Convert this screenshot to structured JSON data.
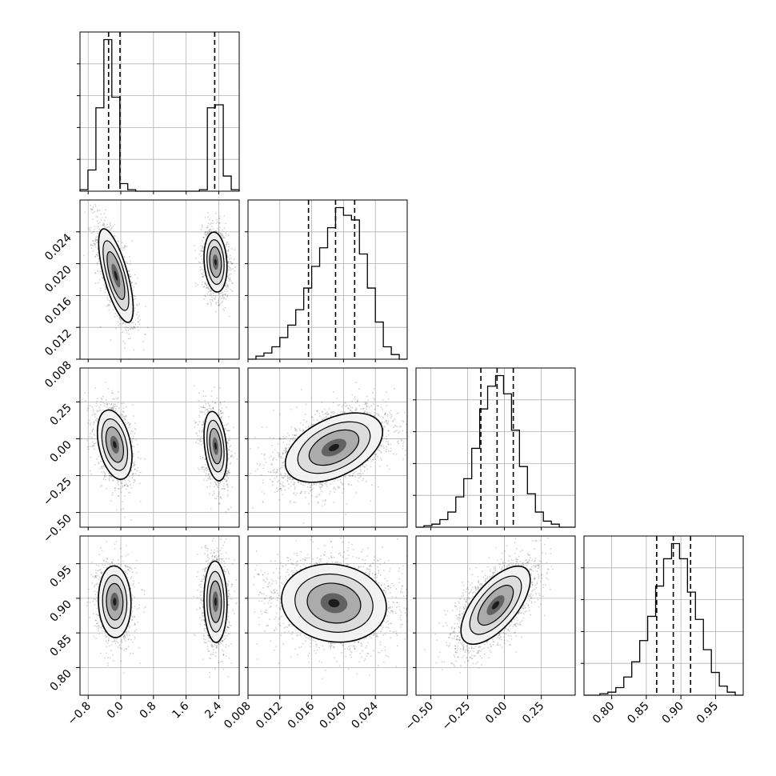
{
  "chart_data": {
    "type": "corner",
    "grid": true,
    "n_params": 4,
    "params": [
      {
        "range": [
          -1.0,
          2.9
        ],
        "ticks": [
          -0.8,
          0.0,
          0.8,
          1.6,
          2.4
        ],
        "tick_labels": [
          "−0.8",
          "0.0",
          "0.8",
          "1.6",
          "2.4"
        ],
        "modes": [
          {
            "center": -0.1,
            "sigma": 0.18,
            "weight": 0.6
          },
          {
            "center": 2.3,
            "sigma": 0.13,
            "weight": 0.4
          }
        ],
        "quantiles": [
          -0.3,
          -0.02,
          2.3
        ]
      },
      {
        "range": [
          0.008,
          0.028
        ],
        "ticks": [
          0.008,
          0.012,
          0.016,
          0.02,
          0.024
        ],
        "tick_labels": [
          "0.008",
          "0.012",
          "0.016",
          "0.020",
          "0.024"
        ],
        "center": 0.0188,
        "sigma": 0.0025,
        "quantiles": [
          0.0156,
          0.019,
          0.0214
        ]
      },
      {
        "range": [
          -0.6,
          0.48
        ],
        "ticks": [
          -0.5,
          -0.25,
          0.0,
          0.25
        ],
        "tick_labels": [
          "−0.50",
          "−0.25",
          "0.00",
          "0.25"
        ],
        "center": -0.05,
        "sigma": 0.1,
        "quantiles": [
          -0.16,
          -0.05,
          0.06
        ]
      },
      {
        "range": [
          0.76,
          0.99
        ],
        "ticks": [
          0.8,
          0.85,
          0.9,
          0.95
        ],
        "tick_labels": [
          "0.80",
          "0.85",
          "0.90",
          "0.95"
        ],
        "center": 0.89,
        "sigma": 0.025,
        "quantiles": [
          0.865,
          0.889,
          0.914
        ]
      }
    ],
    "histograms": [
      {
        "param": 0,
        "bins": [
          -1.0,
          -0.805,
          -0.61,
          -0.415,
          -0.22,
          -0.025,
          0.17,
          0.365,
          0.56,
          0.755,
          0.95,
          1.145,
          1.34,
          1.535,
          1.73,
          1.925,
          2.12,
          2.315,
          2.51,
          2.705,
          2.9
        ],
        "counts": [
          0.01,
          0.14,
          0.55,
          1.0,
          0.62,
          0.05,
          0.01,
          0.0,
          0.0,
          0.0,
          0.0,
          0.0,
          0.0,
          0.0,
          0.0,
          0.01,
          0.55,
          0.57,
          0.1,
          0.01
        ]
      },
      {
        "param": 1,
        "bins": [
          0.008,
          0.009,
          0.01,
          0.011,
          0.012,
          0.013,
          0.014,
          0.015,
          0.016,
          0.017,
          0.018,
          0.019,
          0.02,
          0.021,
          0.022,
          0.023,
          0.024,
          0.025,
          0.026,
          0.027,
          0.028
        ],
        "counts": [
          0.0,
          0.02,
          0.04,
          0.08,
          0.14,
          0.22,
          0.32,
          0.46,
          0.6,
          0.72,
          0.85,
          0.98,
          0.93,
          0.9,
          0.68,
          0.46,
          0.24,
          0.08,
          0.03,
          0.0
        ]
      },
      {
        "param": 2,
        "bins": [
          -0.6,
          -0.546,
          -0.492,
          -0.438,
          -0.384,
          -0.33,
          -0.276,
          -0.222,
          -0.168,
          -0.114,
          -0.06,
          -0.006,
          0.048,
          0.102,
          0.156,
          0.21,
          0.264,
          0.318,
          0.372,
          0.426,
          0.48
        ],
        "counts": [
          0.0,
          0.01,
          0.02,
          0.05,
          0.1,
          0.2,
          0.32,
          0.52,
          0.78,
          0.93,
          1.0,
          0.88,
          0.64,
          0.4,
          0.22,
          0.1,
          0.04,
          0.02,
          0.0,
          0.0
        ]
      },
      {
        "param": 3,
        "bins": [
          0.76,
          0.7715,
          0.783,
          0.7945,
          0.806,
          0.8175,
          0.829,
          0.8405,
          0.852,
          0.8635,
          0.875,
          0.8865,
          0.898,
          0.9095,
          0.921,
          0.9325,
          0.944,
          0.9555,
          0.967,
          0.9785,
          0.99
        ],
        "counts": [
          0.0,
          0.0,
          0.01,
          0.02,
          0.05,
          0.12,
          0.22,
          0.36,
          0.52,
          0.72,
          0.9,
          1.0,
          0.9,
          0.68,
          0.5,
          0.3,
          0.15,
          0.06,
          0.02,
          0.0
        ]
      }
    ],
    "pairs": [
      {
        "x": 0,
        "y": 1,
        "modes": [
          {
            "cx": -0.12,
            "cy": 0.0185,
            "sx": 0.18,
            "sy": 0.0025,
            "rho": -0.7
          },
          {
            "cx": 2.32,
            "cy": 0.0202,
            "sx": 0.12,
            "sy": 0.0016,
            "rho": -0.15
          }
        ]
      },
      {
        "x": 0,
        "y": 2,
        "modes": [
          {
            "cx": -0.15,
            "cy": -0.04,
            "sx": 0.18,
            "sy": 0.1,
            "rho": -0.35
          },
          {
            "cx": 2.32,
            "cy": -0.05,
            "sx": 0.12,
            "sy": 0.1,
            "rho": -0.3
          }
        ]
      },
      {
        "x": 0,
        "y": 3,
        "modes": [
          {
            "cx": -0.15,
            "cy": 0.895,
            "sx": 0.17,
            "sy": 0.022,
            "rho": -0.05
          },
          {
            "cx": 2.32,
            "cy": 0.895,
            "sx": 0.12,
            "sy": 0.025,
            "rho": -0.05
          }
        ]
      },
      {
        "x": 1,
        "y": 2,
        "modes": [
          {
            "cx": 0.0188,
            "cy": -0.06,
            "sx": 0.0026,
            "sy": 0.1,
            "rho": 0.45
          }
        ]
      },
      {
        "x": 1,
        "y": 3,
        "modes": [
          {
            "cx": 0.0188,
            "cy": 0.893,
            "sx": 0.0028,
            "sy": 0.024,
            "rho": -0.1
          }
        ]
      },
      {
        "x": 2,
        "y": 3,
        "modes": [
          {
            "cx": -0.06,
            "cy": 0.89,
            "sx": 0.1,
            "sy": 0.024,
            "rho": 0.65
          }
        ]
      }
    ]
  }
}
